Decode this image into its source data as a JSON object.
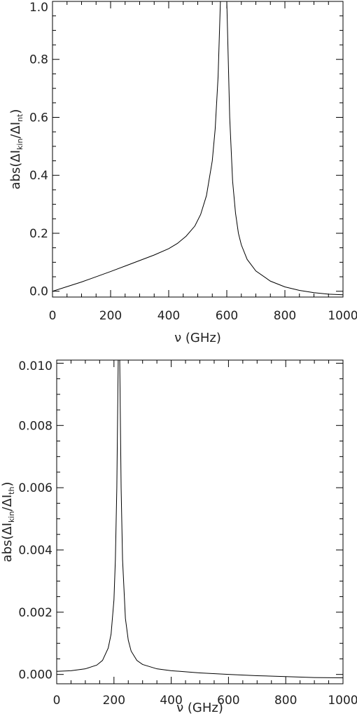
{
  "chart_data": [
    {
      "type": "line",
      "title": "",
      "xlabel": "ν (GHz)",
      "ylabel": "abs(ΔI_kin/ΔI_nt)",
      "xlim": [
        0,
        1000
      ],
      "ylim": [
        -0.02,
        1.0
      ],
      "x_ticks": [
        "0",
        "200",
        "400",
        "600",
        "800",
        "1000"
      ],
      "y_ticks": [
        "0.0",
        "0.2",
        "0.4",
        "0.6",
        "0.8",
        "1.0"
      ],
      "grid": false,
      "series": [
        {
          "x": [
            0,
            50,
            100,
            150,
            200,
            250,
            300,
            350,
            400,
            430,
            460,
            490,
            510,
            530,
            550,
            560,
            570,
            578,
            585,
            600,
            610,
            620,
            630,
            640,
            650,
            670,
            700,
            750,
            800,
            850,
            900,
            950,
            1000
          ],
          "y": [
            0.0,
            0.016,
            0.032,
            0.05,
            0.068,
            0.087,
            0.106,
            0.125,
            0.147,
            0.165,
            0.19,
            0.225,
            0.265,
            0.33,
            0.45,
            0.56,
            0.74,
            1.0,
            1.0,
            1.0,
            0.6,
            0.38,
            0.27,
            0.2,
            0.16,
            0.11,
            0.07,
            0.035,
            0.015,
            0.003,
            -0.005,
            -0.01,
            -0.012
          ]
        }
      ]
    },
    {
      "type": "line",
      "title": "",
      "xlabel": "ν (GHz)",
      "ylabel": "abs(ΔI_kin/ΔI_th)",
      "xlim": [
        0,
        1000
      ],
      "ylim": [
        -0.0003,
        0.0101
      ],
      "x_ticks": [
        "0",
        "200",
        "400",
        "600",
        "800",
        "1000"
      ],
      "y_ticks": [
        "0.000",
        "0.002",
        "0.004",
        "0.006",
        "0.008",
        "0.010"
      ],
      "grid": false,
      "series": [
        {
          "x": [
            0,
            50,
            100,
            140,
            160,
            180,
            190,
            200,
            205,
            210,
            215,
            220,
            225,
            230,
            240,
            250,
            260,
            280,
            300,
            350,
            400,
            500,
            600,
            700,
            800,
            900,
            1000
          ],
          "y": [
            0.0001,
            0.00012,
            0.00018,
            0.0003,
            0.00045,
            0.00085,
            0.0013,
            0.0024,
            0.0037,
            0.006,
            0.0102,
            0.0102,
            0.006,
            0.0037,
            0.0018,
            0.0011,
            0.00075,
            0.00045,
            0.00032,
            0.00018,
            0.00012,
            5e-05,
            0.0,
            -4e-05,
            -7e-05,
            -0.0001,
            -0.00011
          ]
        }
      ]
    }
  ]
}
